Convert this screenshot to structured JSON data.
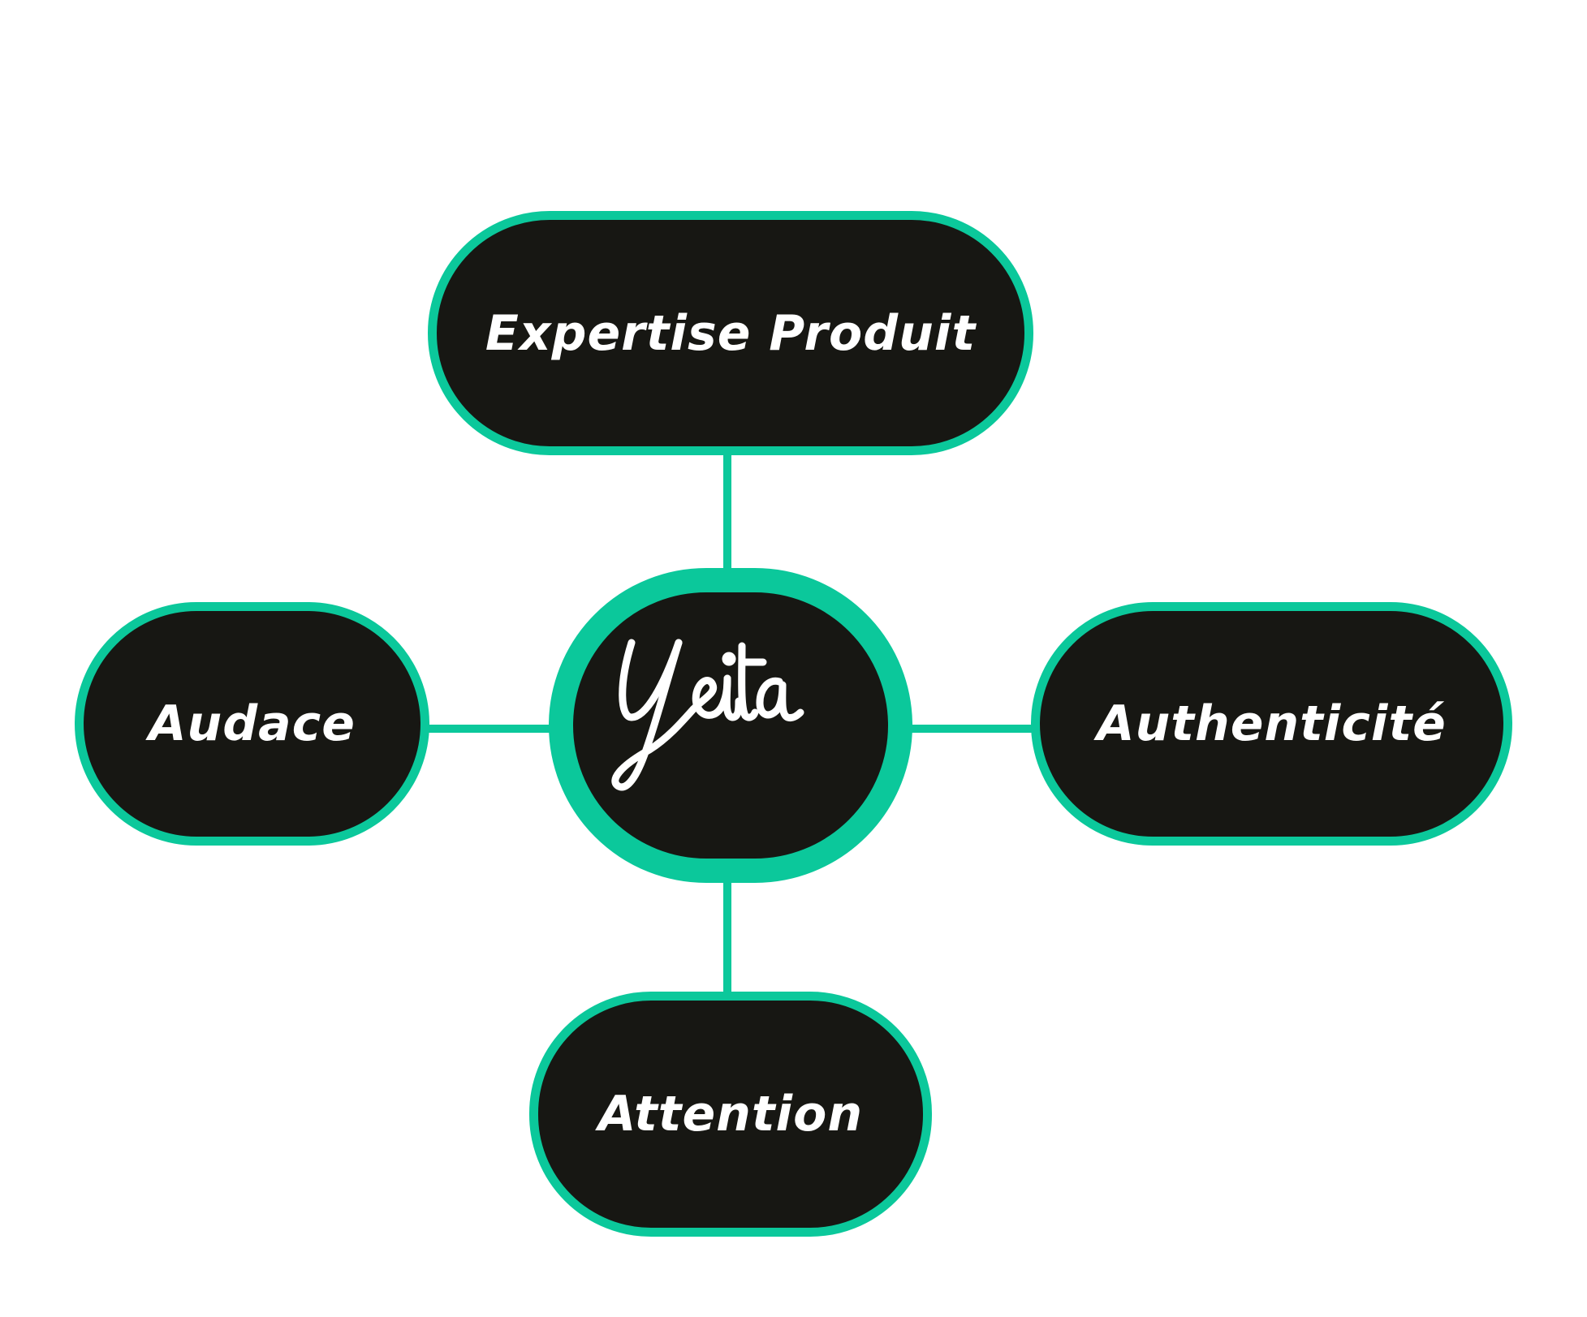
{
  "colors": {
    "accent": "#0bc89b",
    "node_fill": "#171713",
    "text": "#ffffff",
    "background": "#ffffff"
  },
  "center": {
    "logo_text": "yeita"
  },
  "nodes": {
    "top": {
      "label": "Expertise Produit"
    },
    "left": {
      "label": "Audace"
    },
    "right": {
      "label": "Authenticité"
    },
    "bottom": {
      "label": "Attention"
    }
  }
}
